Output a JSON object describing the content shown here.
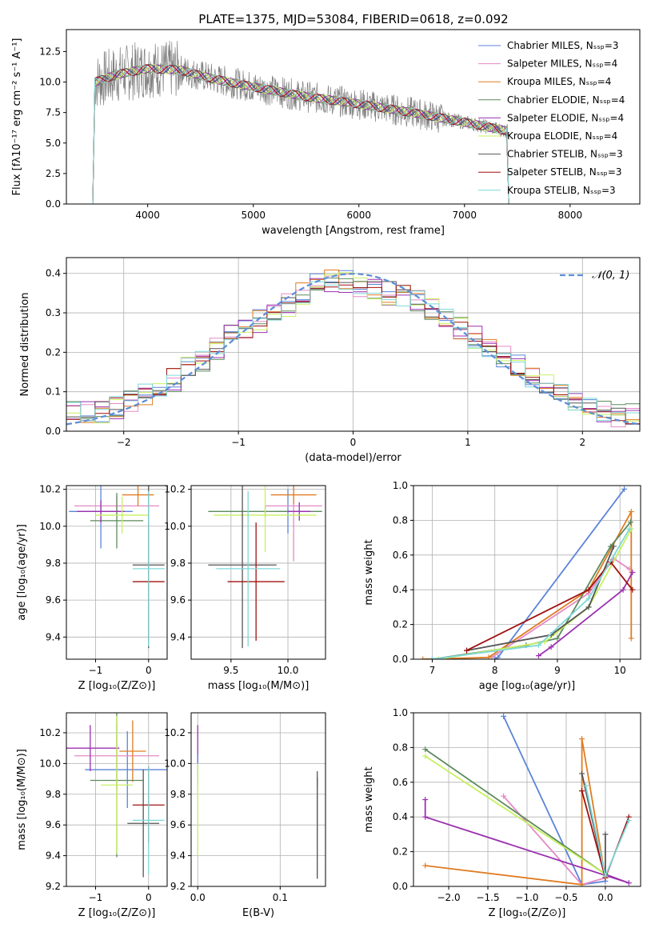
{
  "colors": {
    "chab_miles": "#5b84d8",
    "salp_miles": "#e58ac5",
    "krou_miles": "#e07c22",
    "chab_elodie": "#5c8a5c",
    "salp_elodie": "#9b30b0",
    "krou_elodie": "#c8f060",
    "chab_stelib": "#555555",
    "salp_stelib": "#a01010",
    "krou_stelib": "#7fd8d8",
    "data_gray": "#808080",
    "normal_curve": "#5b8ed6"
  },
  "chart_data": [
    {
      "id": "spectrum",
      "type": "line",
      "title": "PLATE=1375, MJD=53084, FIBERID=0618, z=0.092",
      "xlabel": "wavelength [Angstrom, rest frame]",
      "ylabel": "Flux [fλ10⁻¹⁷ erg cm⁻² s⁻¹ A⁻¹]",
      "xlim": [
        3230,
        8660
      ],
      "ylim": [
        0,
        14.3
      ],
      "xticks": [
        "4000",
        "5000",
        "6000",
        "7000",
        "8000"
      ],
      "yticks": [
        "0.0",
        "2.5",
        "5.0",
        "7.5",
        "10.0",
        "12.5"
      ],
      "legend": [
        "Chabrier MILES, Nₛₛₚ=3",
        "Salpeter MILES, Nₛₛₚ=4",
        "Kroupa MILES, Nₛₛₚ=4",
        "Chabrier ELODIE, Nₛₛₚ=4",
        "Salpeter ELODIE, Nₛₛₚ=4",
        "Kroupa ELODIE, Nₛₛₚ=4",
        "Chabrier STELIB, Nₛₛₚ=3",
        "Salpeter STELIB, Nₛₛₚ=3",
        "Kroupa STELIB, Nₛₛₚ=3"
      ],
      "legend_loc": "upper right",
      "continuum": [
        [
          3500,
          10.0
        ],
        [
          3700,
          10.6
        ],
        [
          4000,
          11.1
        ],
        [
          4300,
          11.0
        ],
        [
          4600,
          10.3
        ],
        [
          5000,
          9.6
        ],
        [
          5500,
          8.8
        ],
        [
          6000,
          8.2
        ],
        [
          6500,
          7.5
        ],
        [
          7000,
          6.7
        ],
        [
          7400,
          6.0
        ]
      ]
    },
    {
      "id": "residuals",
      "type": "line",
      "xlabel": "(data-model)/error",
      "ylabel": "Normed distribution",
      "xlim": [
        -2.5,
        2.5
      ],
      "ylim": [
        0,
        0.44
      ],
      "xticks": [
        "−2",
        "−1",
        "0",
        "1",
        "2"
      ],
      "yticks": [
        "0.0",
        "0.1",
        "0.2",
        "0.3",
        "0.4"
      ],
      "grid": true,
      "legend": [
        "𝒩(0, 1)"
      ],
      "legend_loc": "upper right",
      "bins": 40,
      "envelope": [
        0.05,
        0.05,
        0.05,
        0.06,
        0.08,
        0.09,
        0.11,
        0.13,
        0.16,
        0.18,
        0.21,
        0.24,
        0.26,
        0.28,
        0.3,
        0.32,
        0.35,
        0.37,
        0.38,
        0.38,
        0.37,
        0.36,
        0.35,
        0.34,
        0.33,
        0.31,
        0.28,
        0.26,
        0.24,
        0.21,
        0.19,
        0.17,
        0.14,
        0.12,
        0.1,
        0.08,
        0.07,
        0.05,
        0.04,
        0.04
      ]
    },
    {
      "id": "age_vs_Z",
      "type": "scatter",
      "xlabel": "Z [log₁₀(Z/Z⊙)]",
      "ylabel": "age  [log₁₀(age/yr)]",
      "xlim": [
        -1.55,
        0.35
      ],
      "ylim": [
        9.28,
        10.22
      ],
      "xticks": [
        "−1",
        "0"
      ],
      "yticks": [
        "9.4",
        "9.6",
        "9.8",
        "10.0",
        "10.2"
      ],
      "points": [
        {
          "c": "chab_miles",
          "x": -0.9,
          "y": 10.08,
          "xerr": 0.6,
          "yerr": 0.2
        },
        {
          "c": "salp_miles",
          "x": -0.6,
          "y": 10.11,
          "xerr": 0.8,
          "yerr": 0.05
        },
        {
          "c": "krou_miles",
          "x": -0.2,
          "y": 10.17,
          "xerr": 0.3,
          "yerr": 0.06
        },
        {
          "c": "chab_elodie",
          "x": -0.6,
          "y": 10.03,
          "xerr": 0.5,
          "yerr": 0.15
        },
        {
          "c": "salp_elodie",
          "x": -0.9,
          "y": 10.08,
          "xerr": 0.45,
          "yerr": 0.06
        },
        {
          "c": "krou_elodie",
          "x": -0.5,
          "y": 10.06,
          "xerr": 0.5,
          "yerr": 0.1
        },
        {
          "c": "chab_stelib",
          "x": 0.0,
          "y": 9.79,
          "xerr": 0.3,
          "yerr": 0.45
        },
        {
          "c": "salp_stelib",
          "x": 0.0,
          "y": 9.7,
          "xerr": 0.3,
          "yerr": 0.32
        },
        {
          "c": "krou_stelib",
          "x": 0.0,
          "y": 9.77,
          "xerr": 0.3,
          "yerr": 0.42
        }
      ]
    },
    {
      "id": "age_vs_mass",
      "type": "scatter",
      "xlabel": "mass [log₁₀(M/M⊙)]",
      "ylabel": "",
      "xlim": [
        9.15,
        10.33
      ],
      "ylim": [
        9.28,
        10.22
      ],
      "xticks": [
        "9.5",
        "10.0"
      ],
      "yticks": [
        "9.4",
        "9.6",
        "9.8",
        "10.0",
        "10.2"
      ],
      "points": [
        {
          "c": "chab_miles",
          "x": 10.0,
          "y": 10.08,
          "xerr": 0.1,
          "yerr": 0.12
        },
        {
          "c": "salp_miles",
          "x": 10.05,
          "y": 10.11,
          "xerr": 0.25,
          "yerr": 0.3
        },
        {
          "c": "krou_miles",
          "x": 10.05,
          "y": 10.17,
          "xerr": 0.2,
          "yerr": 0.05
        },
        {
          "c": "chab_elodie",
          "x": 9.8,
          "y": 10.08,
          "xerr": 0.5,
          "yerr": 0.03
        },
        {
          "c": "salp_elodie",
          "x": 10.1,
          "y": 10.08,
          "xerr": 0.1,
          "yerr": 0.05
        },
        {
          "c": "krou_elodie",
          "x": 9.8,
          "y": 10.06,
          "xerr": 0.45,
          "yerr": 0.2
        },
        {
          "c": "chab_stelib",
          "x": 9.6,
          "y": 9.79,
          "xerr": 0.3,
          "yerr": 0.45
        },
        {
          "c": "salp_stelib",
          "x": 9.72,
          "y": 9.7,
          "xerr": 0.25,
          "yerr": 0.32
        },
        {
          "c": "krou_stelib",
          "x": 9.65,
          "y": 9.77,
          "xerr": 0.28,
          "yerr": 0.42
        }
      ]
    },
    {
      "id": "mass_weight_vs_age",
      "type": "line",
      "xlabel": "age  [log₁₀(age/yr)]",
      "ylabel": "mass weight",
      "xlim": [
        6.7,
        10.33
      ],
      "ylim": [
        0.0,
        1.0
      ],
      "xticks": [
        "7",
        "8",
        "9",
        "10"
      ],
      "yticks": [
        "0.0",
        "0.2",
        "0.4",
        "0.6",
        "0.8",
        "1.0"
      ],
      "grid": true,
      "series": [
        {
          "c": "chab_miles",
          "x": [
            8.0,
            8.05,
            10.07
          ],
          "y": [
            0.0,
            0.01,
            0.98
          ]
        },
        {
          "c": "salp_miles",
          "x": [
            7.95,
            9.5,
            9.9,
            10.15
          ],
          "y": [
            0.01,
            0.38,
            0.58,
            0.52
          ]
        },
        {
          "c": "krou_miles",
          "x": [
            6.85,
            7.9,
            9.5,
            10.18,
            10.18
          ],
          "y": [
            0.0,
            0.01,
            0.4,
            0.85,
            0.12
          ]
        },
        {
          "c": "chab_elodie",
          "x": [
            7.0,
            8.5,
            9.0,
            9.85,
            10.17
          ],
          "y": [
            0.0,
            0.08,
            0.12,
            0.65,
            0.79
          ]
        },
        {
          "c": "salp_elodie",
          "x": [
            8.7,
            8.9,
            10.05,
            10.2
          ],
          "y": [
            0.02,
            0.07,
            0.4,
            0.5
          ]
        },
        {
          "c": "krou_elodie",
          "x": [
            7.1,
            8.8,
            9.5,
            10.18
          ],
          "y": [
            0.0,
            0.1,
            0.3,
            0.75
          ]
        },
        {
          "c": "chab_stelib",
          "x": [
            7.55,
            8.9,
            9.5,
            9.9
          ],
          "y": [
            0.05,
            0.14,
            0.3,
            0.65
          ]
        },
        {
          "c": "salp_stelib",
          "x": [
            7.55,
            9.5,
            9.85,
            10.2
          ],
          "y": [
            0.05,
            0.4,
            0.56,
            0.4
          ]
        },
        {
          "c": "krou_stelib",
          "x": [
            7.0,
            8.7,
            9.5,
            10.15
          ],
          "y": [
            0.0,
            0.08,
            0.35,
            0.75
          ]
        }
      ]
    },
    {
      "id": "mass_vs_Z",
      "type": "scatter",
      "xlabel": "Z [log₁₀(Z/Z⊙)]",
      "ylabel": "mass [log₁₀(M/M⊙)]",
      "xlim": [
        -1.55,
        0.35
      ],
      "ylim": [
        9.2,
        10.33
      ],
      "xticks": [
        "−1",
        "0"
      ],
      "yticks": [
        "9.2",
        "9.4",
        "9.6",
        "9.8",
        "10.0",
        "10.2"
      ],
      "points": [
        {
          "c": "chab_miles",
          "x": -0.4,
          "y": 9.96,
          "xerr": 0.8,
          "yerr": 0.25
        },
        {
          "c": "salp_miles",
          "x": -0.6,
          "y": 10.05,
          "xerr": 0.8,
          "yerr": 0.22
        },
        {
          "c": "krou_miles",
          "x": -0.3,
          "y": 10.08,
          "xerr": 0.25,
          "yerr": 0.2
        },
        {
          "c": "chab_elodie",
          "x": -0.6,
          "y": 9.89,
          "xerr": 0.5,
          "yerr": 0.5
        },
        {
          "c": "salp_elodie",
          "x": -1.1,
          "y": 10.1,
          "xerr": 0.55,
          "yerr": 0.15
        },
        {
          "c": "krou_elodie",
          "x": -0.6,
          "y": 9.86,
          "xerr": 0.3,
          "yerr": 0.45
        },
        {
          "c": "chab_stelib",
          "x": -0.1,
          "y": 9.61,
          "xerr": 0.3,
          "yerr": 0.35
        },
        {
          "c": "salp_stelib",
          "x": 0.0,
          "y": 9.73,
          "xerr": 0.3,
          "yerr": 0.25
        },
        {
          "c": "krou_stelib",
          "x": 0.0,
          "y": 9.63,
          "xerr": 0.3,
          "yerr": 0.35
        }
      ]
    },
    {
      "id": "mass_vs_ebv",
      "type": "scatter",
      "xlabel": "E(B-V)",
      "ylabel": "",
      "xlim": [
        -0.008,
        0.155
      ],
      "ylim": [
        9.2,
        10.33
      ],
      "xticks": [
        "0.0",
        "0.1"
      ],
      "yticks": [
        "9.2",
        "9.4",
        "9.6",
        "9.8",
        "10.0",
        "10.2"
      ],
      "points": [
        {
          "c": "salp_elodie",
          "x": 0.0,
          "y": 10.1,
          "xerr": 0,
          "yerr": 0.15
        },
        {
          "c": "chab_miles",
          "x": 0.0,
          "y": 9.96,
          "xerr": 0,
          "yerr": 0.1
        },
        {
          "c": "krou_elodie",
          "x": 0.0,
          "y": 9.7,
          "xerr": 0,
          "yerr": 0.3
        },
        {
          "c": "salp_stelib",
          "x": 0.145,
          "y": 9.73,
          "xerr": 0,
          "yerr": 0.18
        },
        {
          "c": "krou_stelib",
          "x": 0.145,
          "y": 9.55,
          "xerr": 0,
          "yerr": 0.3
        },
        {
          "c": "chab_stelib",
          "x": 0.145,
          "y": 9.6,
          "xerr": 0,
          "yerr": 0.35
        }
      ]
    },
    {
      "id": "mass_weight_vs_Z",
      "type": "line",
      "xlabel": "Z [log₁₀(Z/Z⊙)]",
      "ylabel": "mass weight",
      "xlim": [
        -2.45,
        0.45
      ],
      "ylim": [
        0.0,
        1.0
      ],
      "xticks": [
        "−2.0",
        "−1.5",
        "−1.0",
        "−0.5",
        "0.0"
      ],
      "yticks": [
        "0.0",
        "0.2",
        "0.4",
        "0.6",
        "0.8",
        "1.0"
      ],
      "grid": true,
      "series": [
        {
          "c": "chab_miles",
          "x": [
            -1.3,
            -0.3,
            0.0
          ],
          "y": [
            0.98,
            0.01,
            0.03
          ]
        },
        {
          "c": "salp_miles",
          "x": [
            -1.3,
            -0.3,
            0.0
          ],
          "y": [
            0.52,
            0.01,
            0.05
          ]
        },
        {
          "c": "krou_miles",
          "x": [
            -2.3,
            -0.3,
            -0.3,
            0.0
          ],
          "y": [
            0.12,
            0.01,
            0.85,
            0.05
          ]
        },
        {
          "c": "chab_elodie",
          "x": [
            -2.3,
            0.0
          ],
          "y": [
            0.79,
            0.07
          ]
        },
        {
          "c": "salp_elodie",
          "x": [
            -2.3,
            -2.3,
            0.3,
            0.0
          ],
          "y": [
            0.5,
            0.4,
            0.02,
            0.07
          ]
        },
        {
          "c": "krou_elodie",
          "x": [
            -2.3,
            0.0
          ],
          "y": [
            0.75,
            0.07
          ]
        },
        {
          "c": "chab_stelib",
          "x": [
            -0.3,
            0.0,
            0.0
          ],
          "y": [
            0.65,
            0.05,
            0.3
          ]
        },
        {
          "c": "salp_stelib",
          "x": [
            -0.3,
            0.0,
            0.3
          ],
          "y": [
            0.55,
            0.05,
            0.4
          ]
        },
        {
          "c": "krou_stelib",
          "x": [
            -0.25,
            0.0,
            0.3
          ],
          "y": [
            0.58,
            0.06,
            0.38
          ]
        }
      ]
    }
  ]
}
